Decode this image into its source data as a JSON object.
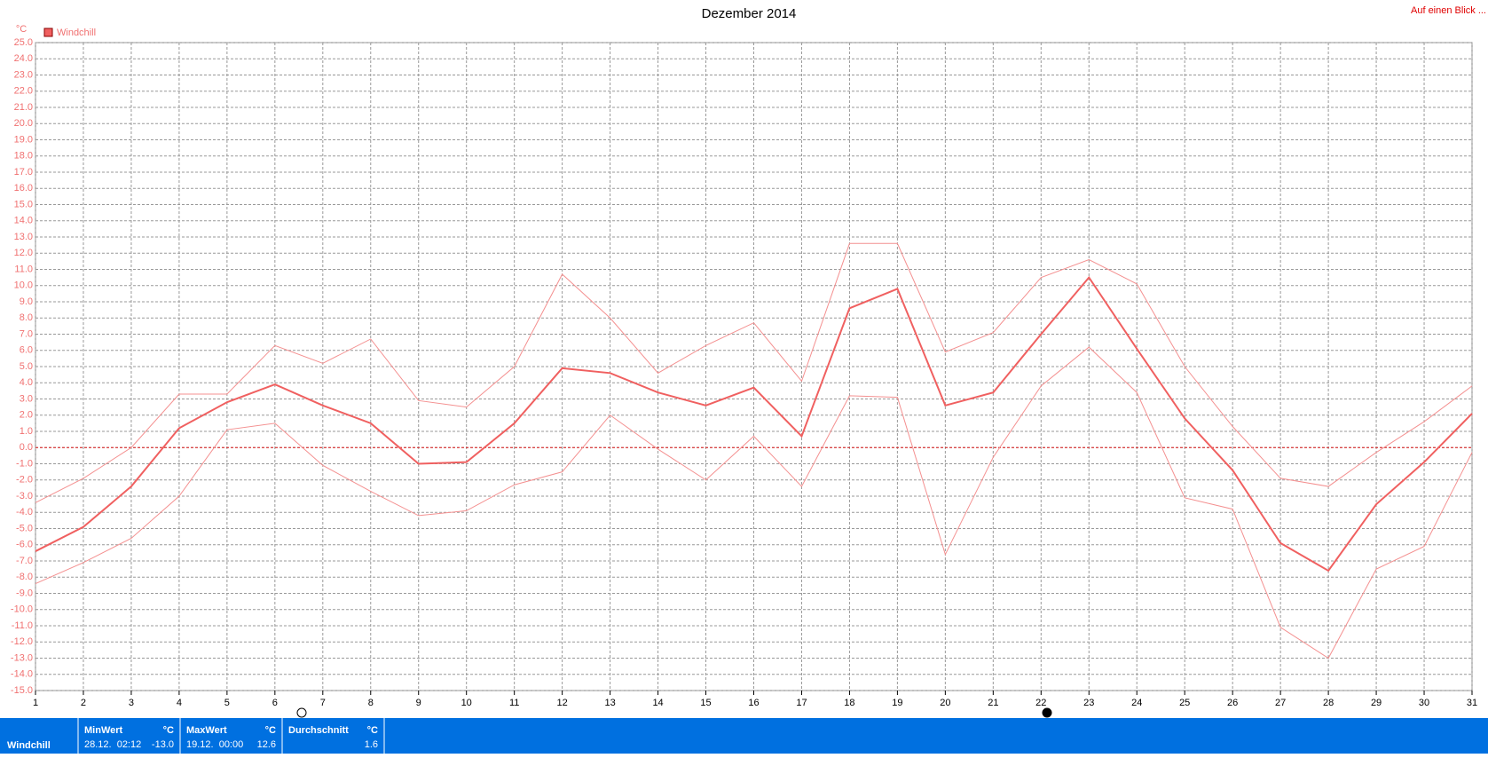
{
  "chart_data": {
    "type": "line",
    "title": "Dezember 2014",
    "link": "Auf einen Blick ...",
    "y_label": "°C",
    "x": [
      1,
      2,
      3,
      4,
      5,
      6,
      7,
      8,
      9,
      10,
      11,
      12,
      13,
      14,
      15,
      16,
      17,
      18,
      19,
      20,
      21,
      22,
      23,
      24,
      25,
      26,
      27,
      28,
      29,
      30,
      31
    ],
    "xlim": [
      1,
      31
    ],
    "ylim": [
      -15,
      25
    ],
    "yticks": [
      {
        "value": 25,
        "label": "25.0"
      },
      {
        "value": 24,
        "label": "24.0"
      },
      {
        "value": 23,
        "label": "23.0"
      },
      {
        "value": 22,
        "label": "22.0"
      },
      {
        "value": 21,
        "label": "21.0"
      },
      {
        "value": 20,
        "label": "20.0"
      },
      {
        "value": 19,
        "label": "19.0"
      },
      {
        "value": 18,
        "label": "18.0"
      },
      {
        "value": 17,
        "label": "17.0"
      },
      {
        "value": 16,
        "label": "16.0"
      },
      {
        "value": 15,
        "label": "15.0"
      },
      {
        "value": 14,
        "label": "14.0"
      },
      {
        "value": 13,
        "label": "13.0"
      },
      {
        "value": 12,
        "label": "12.0"
      },
      {
        "value": 11,
        "label": "11.0"
      },
      {
        "value": 10,
        "label": "10.0"
      },
      {
        "value": 9,
        "label": "9.0"
      },
      {
        "value": 8,
        "label": "8.0"
      },
      {
        "value": 7,
        "label": "7.0"
      },
      {
        "value": 6,
        "label": "6.0"
      },
      {
        "value": 5,
        "label": "5.0"
      },
      {
        "value": 4,
        "label": "4.0"
      },
      {
        "value": 3,
        "label": "3.0"
      },
      {
        "value": 2,
        "label": "2.0"
      },
      {
        "value": 1,
        "label": "1.0"
      },
      {
        "value": 0,
        "label": "0.0"
      },
      {
        "value": -1,
        "label": "-1.0"
      },
      {
        "value": -2,
        "label": "-2.0"
      },
      {
        "value": -3,
        "label": "-3.0"
      },
      {
        "value": -4,
        "label": "-4.0"
      },
      {
        "value": -5,
        "label": "-5.0"
      },
      {
        "value": -6,
        "label": "-6.0"
      },
      {
        "value": -7,
        "label": "-7.0"
      },
      {
        "value": -8,
        "label": "-8.0"
      },
      {
        "value": -9,
        "label": "-9.0"
      },
      {
        "value": -10,
        "label": "-10.0"
      },
      {
        "value": -11,
        "label": "-11.0"
      },
      {
        "value": -12,
        "label": "-12.0"
      },
      {
        "value": -13,
        "label": "-13.0"
      },
      {
        "value": -14,
        "label": "-14.0"
      },
      {
        "value": -15,
        "label": "-15.0"
      }
    ],
    "grid": true,
    "series": [
      {
        "name": "Windchill",
        "color": "#f06060",
        "values": [
          -6.4,
          -4.9,
          -2.4,
          1.2,
          2.8,
          3.9,
          2.6,
          1.5,
          -1.0,
          -0.9,
          1.5,
          4.9,
          4.6,
          3.4,
          2.6,
          3.7,
          0.7,
          8.6,
          9.8,
          2.6,
          3.4,
          7.0,
          10.5,
          6.1,
          1.8,
          -1.4,
          -5.9,
          -7.6,
          -3.5,
          -0.9,
          2.1
        ]
      },
      {
        "color": "#f49090",
        "values": [
          -3.4,
          -1.9,
          0.0,
          3.3,
          3.3,
          6.3,
          5.2,
          6.7,
          2.9,
          2.5,
          5.0,
          10.7,
          8.0,
          4.6,
          6.3,
          7.7,
          4.1,
          12.6,
          12.6,
          5.9,
          7.1,
          10.5,
          11.6,
          10.1,
          5.0,
          1.3,
          -1.9,
          -2.4,
          -0.3,
          1.6,
          3.8
        ]
      },
      {
        "color": "#f49090",
        "values": [
          -8.4,
          -7.1,
          -5.6,
          -3.0,
          1.1,
          1.5,
          -1.1,
          -2.7,
          -4.2,
          -3.9,
          -2.3,
          -1.5,
          2.0,
          -0.1,
          -2.0,
          0.7,
          -2.4,
          3.2,
          3.1,
          -6.6,
          -0.6,
          3.8,
          6.2,
          3.4,
          -3.1,
          -3.8,
          -11.1,
          -13.0,
          -7.5,
          -6.1,
          -0.3
        ]
      }
    ]
  },
  "summary": {
    "label": "Windchill",
    "cells": [
      {
        "title": "MinWert",
        "unit": "°C",
        "date": "28.12.  02:12",
        "value": "-13.0"
      },
      {
        "title": "MaxWert",
        "unit": "°C",
        "date": "19.12.  00:00",
        "value": "12.6"
      },
      {
        "title": "Durchschnitt",
        "unit": "°C",
        "value": "1.6"
      }
    ]
  }
}
